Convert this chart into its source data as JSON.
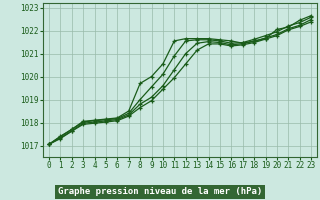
{
  "title": "Graphe pression niveau de la mer (hPa)",
  "bg_color": "#cce8e0",
  "plot_bg_color": "#cce8e0",
  "label_bg_color": "#336633",
  "label_text_color": "#ffffff",
  "grid_color": "#99bbaa",
  "line_color": "#1a5c1a",
  "border_color": "#336633",
  "xlim": [
    -0.5,
    23.5
  ],
  "ylim": [
    1016.5,
    1023.2
  ],
  "yticks": [
    1017,
    1018,
    1019,
    1020,
    1021,
    1022,
    1023
  ],
  "xticks": [
    0,
    1,
    2,
    3,
    4,
    5,
    6,
    7,
    8,
    9,
    10,
    11,
    12,
    13,
    14,
    15,
    16,
    17,
    18,
    19,
    20,
    21,
    22,
    23
  ],
  "series": [
    [
      1017.05,
      1017.4,
      1017.7,
      1018.05,
      1018.1,
      1018.15,
      1018.2,
      1018.5,
      1019.7,
      1020.0,
      1020.55,
      1021.55,
      1021.65,
      1021.65,
      1021.65,
      1021.6,
      1021.55,
      1021.45,
      1021.55,
      1021.65,
      1022.05,
      1022.15,
      1022.45,
      1022.65
    ],
    [
      1017.05,
      1017.38,
      1017.7,
      1018.02,
      1018.08,
      1018.12,
      1018.17,
      1018.4,
      1019.0,
      1019.55,
      1020.1,
      1020.9,
      1021.55,
      1021.6,
      1021.6,
      1021.55,
      1021.45,
      1021.48,
      1021.62,
      1021.78,
      1021.95,
      1022.2,
      1022.35,
      1022.58
    ],
    [
      1017.05,
      1017.33,
      1017.63,
      1017.97,
      1018.02,
      1018.07,
      1018.13,
      1018.33,
      1018.8,
      1019.1,
      1019.6,
      1020.3,
      1021.0,
      1021.45,
      1021.52,
      1021.48,
      1021.38,
      1021.43,
      1021.53,
      1021.68,
      1021.83,
      1022.08,
      1022.23,
      1022.48
    ],
    [
      1017.05,
      1017.3,
      1017.62,
      1017.92,
      1017.97,
      1018.02,
      1018.08,
      1018.28,
      1018.65,
      1018.95,
      1019.45,
      1019.95,
      1020.55,
      1021.15,
      1021.42,
      1021.42,
      1021.33,
      1021.38,
      1021.48,
      1021.63,
      1021.78,
      1022.03,
      1022.18,
      1022.38
    ]
  ]
}
